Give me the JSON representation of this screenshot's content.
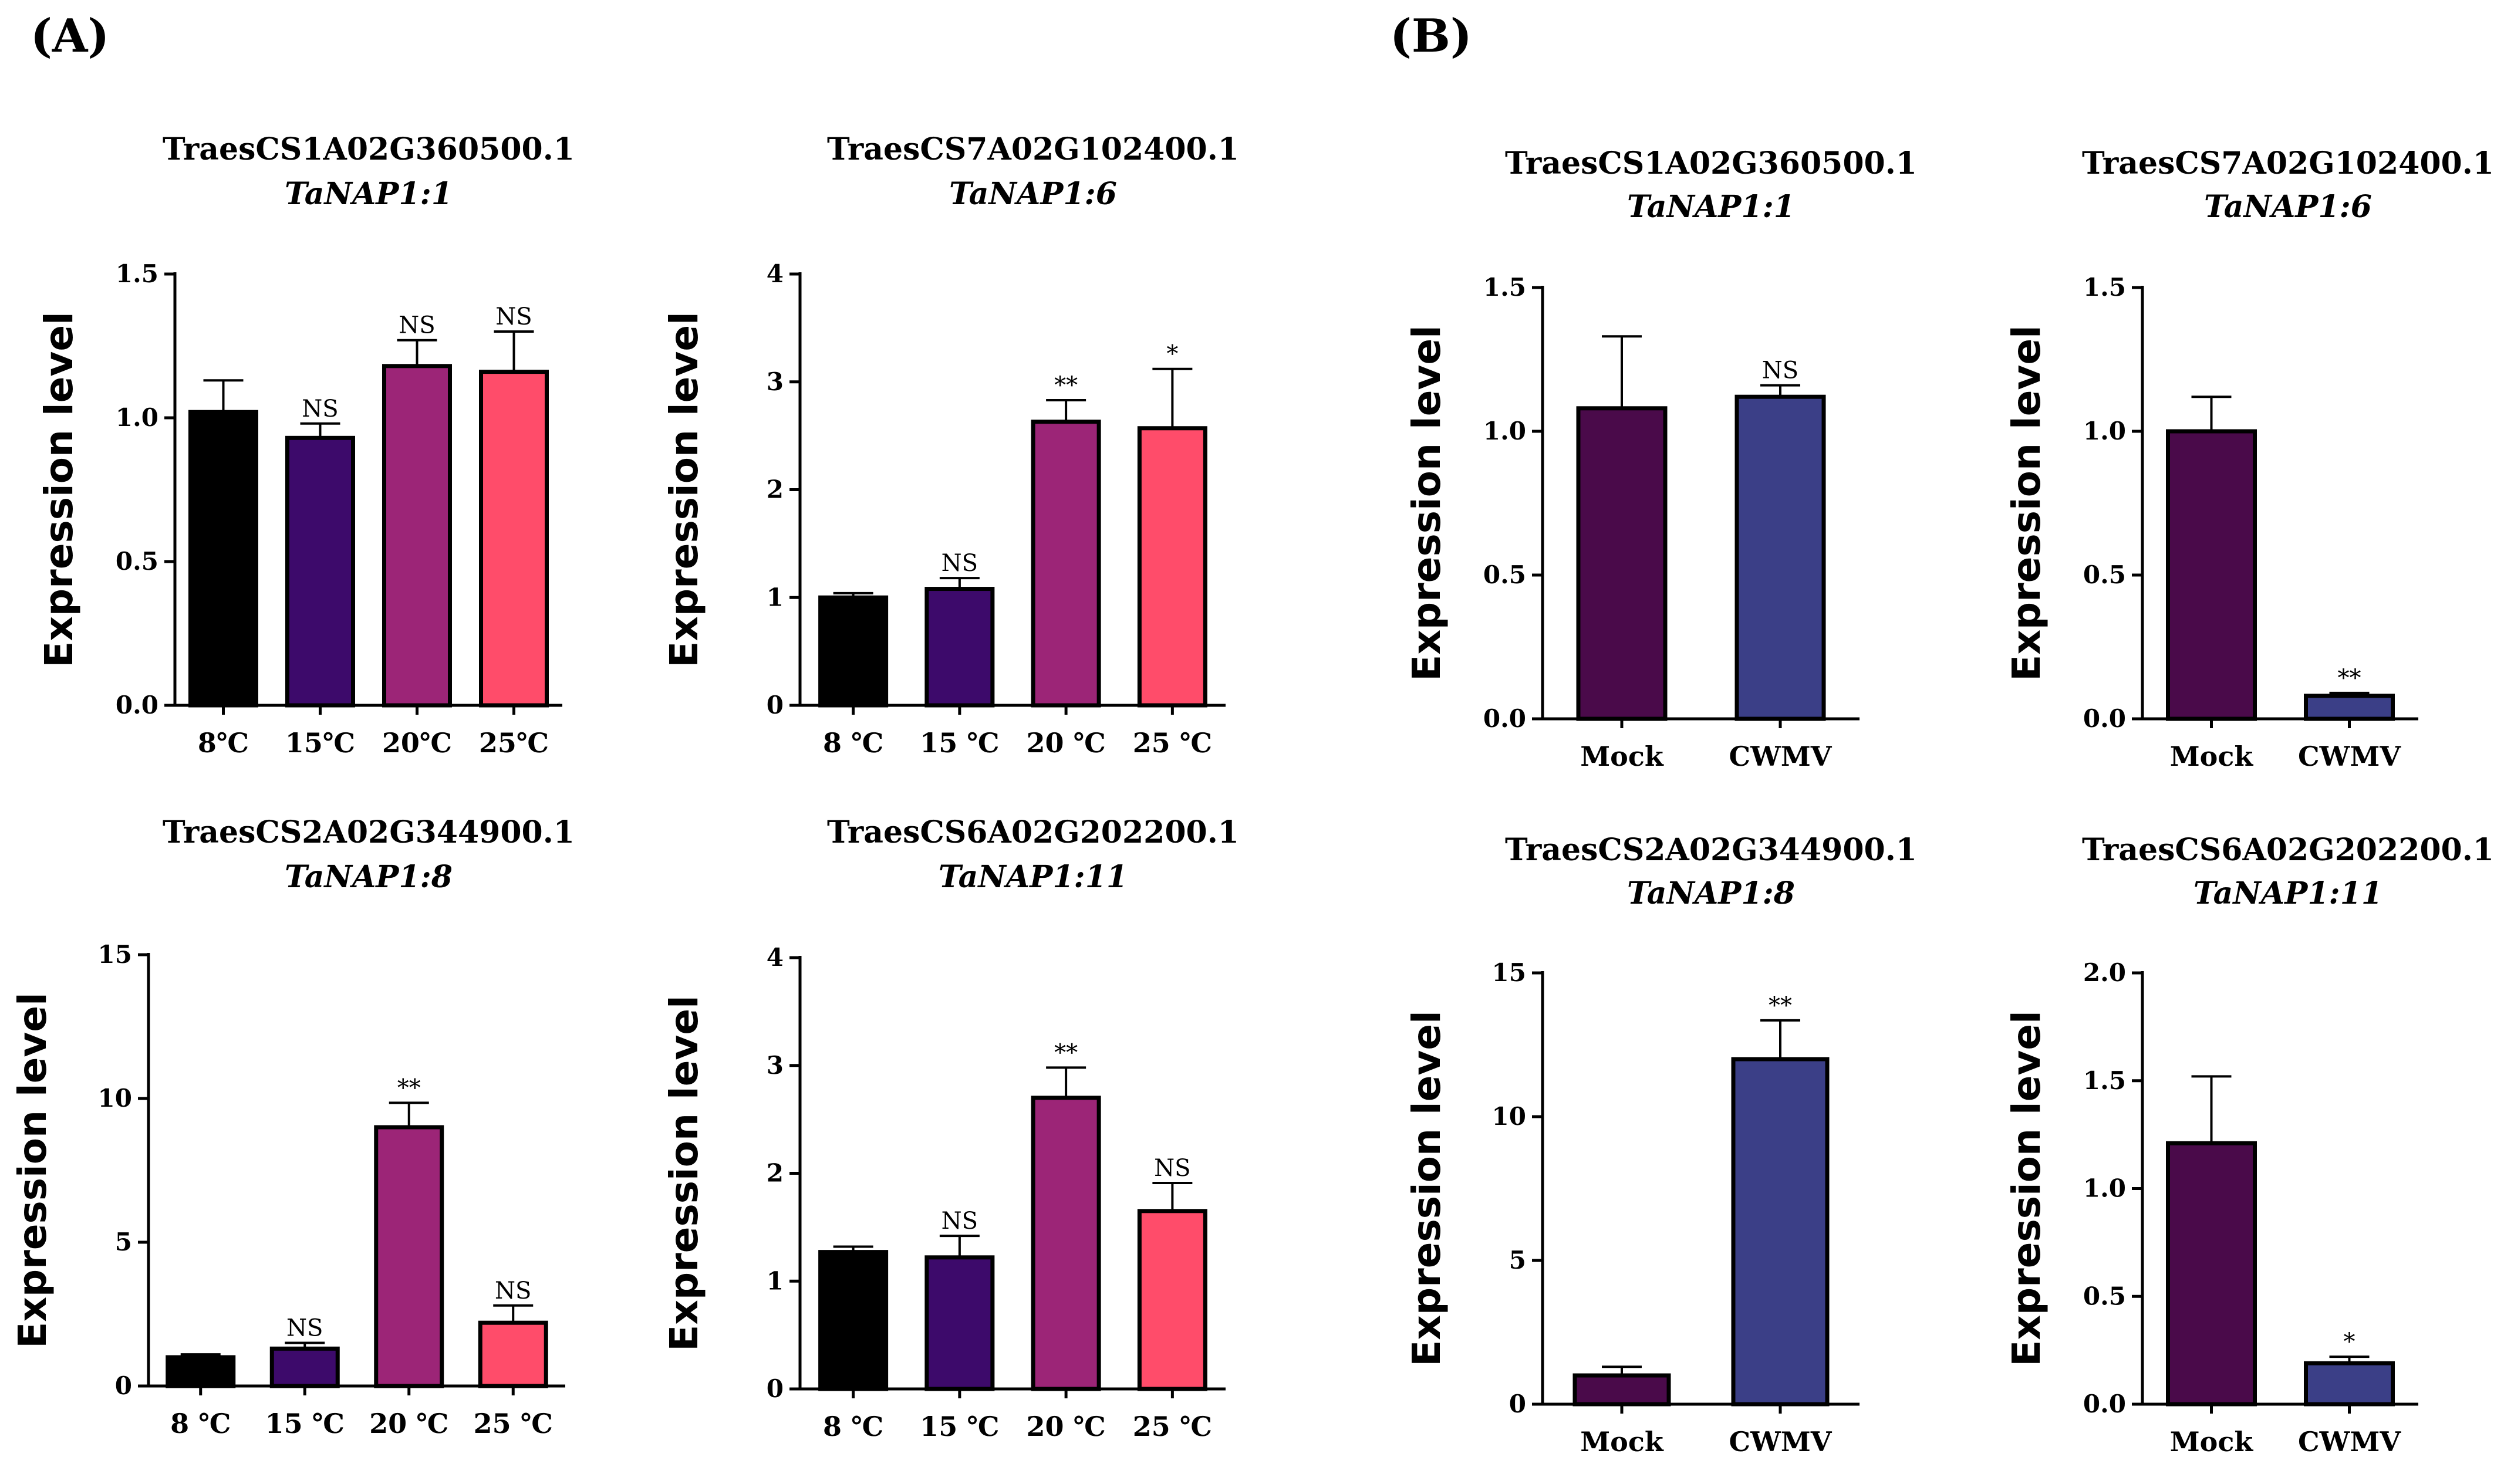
{
  "panel_labels": [
    "(A)",
    "(B)"
  ],
  "y_axis_label": "Expression level",
  "chart_data": [
    {
      "type": "bar",
      "panel": "A",
      "title": "TraesCS1A02G360500.1",
      "subtitle": "TaNAP1:1",
      "ylabel": "Expression level",
      "ylim": [
        0,
        1.5
      ],
      "yticks": [
        "0.0",
        "0.5",
        "1.0",
        "1.5"
      ],
      "categories": [
        "8℃",
        "15℃",
        "20℃",
        "25℃"
      ],
      "values": [
        1.02,
        0.93,
        1.18,
        1.16
      ],
      "errors": [
        0.11,
        0.05,
        0.09,
        0.14
      ],
      "significance": [
        "",
        "NS",
        "NS",
        "NS"
      ],
      "colors": [
        "#000000",
        "#3d0a6b",
        "#9c2577",
        "#ff4c6a"
      ]
    },
    {
      "type": "bar",
      "panel": "A",
      "title": "TraesCS7A02G102400.1",
      "subtitle": "TaNAP1:6",
      "ylabel": "Expression level",
      "ylim": [
        0,
        4
      ],
      "yticks": [
        "0",
        "1",
        "2",
        "3",
        "4"
      ],
      "categories": [
        "8 ℃",
        "15 ℃",
        "20 ℃",
        "25 ℃"
      ],
      "values": [
        1.0,
        1.08,
        2.63,
        2.57
      ],
      "errors": [
        0.04,
        0.1,
        0.2,
        0.55
      ],
      "significance": [
        "",
        "NS",
        "**",
        "*"
      ],
      "colors": [
        "#000000",
        "#3d0a6b",
        "#9c2577",
        "#ff4c6a"
      ]
    },
    {
      "type": "bar",
      "panel": "A",
      "title": "TraesCS2A02G344900.1",
      "subtitle": "TaNAP1:8",
      "ylabel": "Expression level",
      "ylim": [
        0,
        15
      ],
      "yticks": [
        "0",
        "5",
        "10",
        "15"
      ],
      "categories": [
        "8 ℃",
        "15 ℃",
        "20 ℃",
        "25 ℃"
      ],
      "values": [
        1.0,
        1.3,
        9.0,
        2.2
      ],
      "errors": [
        0.1,
        0.2,
        0.85,
        0.6
      ],
      "significance": [
        "",
        "NS",
        "**",
        "NS"
      ],
      "colors": [
        "#000000",
        "#3d0a6b",
        "#9c2577",
        "#ff4c6a"
      ]
    },
    {
      "type": "bar",
      "panel": "A",
      "title": "TraesCS6A02G202200.1",
      "subtitle": "TaNAP1:11",
      "ylabel": "Expression level",
      "ylim": [
        0,
        4
      ],
      "yticks": [
        "0",
        "1",
        "2",
        "3",
        "4"
      ],
      "categories": [
        "8 ℃",
        "15 ℃",
        "20 ℃",
        "25 ℃"
      ],
      "values": [
        1.27,
        1.22,
        2.7,
        1.65
      ],
      "errors": [
        0.05,
        0.2,
        0.28,
        0.26
      ],
      "significance": [
        "",
        "NS",
        "**",
        "NS"
      ],
      "colors": [
        "#000000",
        "#3d0a6b",
        "#9c2577",
        "#ff4c6a"
      ]
    },
    {
      "type": "bar",
      "panel": "B",
      "title": "TraesCS1A02G360500.1",
      "subtitle": "TaNAP1:1",
      "ylabel": "Expression level",
      "ylim": [
        0,
        1.5
      ],
      "yticks": [
        "0.0",
        "0.5",
        "1.0",
        "1.5"
      ],
      "categories": [
        "Mock",
        "CWMV"
      ],
      "values": [
        1.08,
        1.12
      ],
      "errors": [
        0.25,
        0.04
      ],
      "significance": [
        "",
        "NS"
      ],
      "colors": [
        "#4a0a4a",
        "#3b3f87"
      ]
    },
    {
      "type": "bar",
      "panel": "B",
      "title": "TraesCS7A02G102400.1",
      "subtitle": "TaNAP1:6",
      "ylabel": "Expression level",
      "ylim": [
        0,
        1.5
      ],
      "yticks": [
        "0.0",
        "0.5",
        "1.0",
        "1.5"
      ],
      "categories": [
        "Mock",
        "CWMV"
      ],
      "values": [
        1.0,
        0.08
      ],
      "errors": [
        0.12,
        0.01
      ],
      "significance": [
        "",
        "**"
      ],
      "colors": [
        "#4a0a4a",
        "#3b3f87"
      ]
    },
    {
      "type": "bar",
      "panel": "B",
      "title": "TraesCS2A02G344900.1",
      "subtitle": "TaNAP1:8",
      "ylabel": "Expression level",
      "ylim": [
        0,
        15
      ],
      "yticks": [
        "0",
        "5",
        "10",
        "15"
      ],
      "categories": [
        "Mock",
        "CWMV"
      ],
      "values": [
        1.0,
        12.0
      ],
      "errors": [
        0.3,
        1.35
      ],
      "significance": [
        "",
        "**"
      ],
      "colors": [
        "#4a0a4a",
        "#3b3f87"
      ]
    },
    {
      "type": "bar",
      "panel": "B",
      "title": "TraesCS6A02G202200.1",
      "subtitle": "TaNAP1:11",
      "ylabel": "Expression level",
      "ylim": [
        0,
        2.0
      ],
      "yticks": [
        "0.0",
        "0.5",
        "1.0",
        "1.5",
        "2.0"
      ],
      "categories": [
        "Mock",
        "CWMV"
      ],
      "values": [
        1.21,
        0.19
      ],
      "errors": [
        0.31,
        0.03
      ],
      "significance": [
        "",
        "*"
      ],
      "colors": [
        "#4a0a4a",
        "#3b3f87"
      ]
    }
  ]
}
